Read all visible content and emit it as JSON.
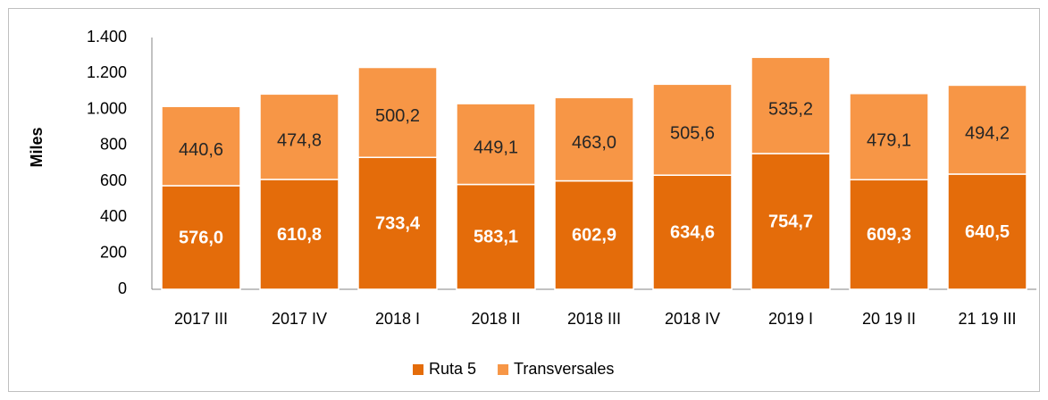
{
  "chart_data": {
    "type": "stacked_bar",
    "y_label": "Miles",
    "categories": [
      "2017 III",
      "2017 IV",
      "2018 I",
      "2018 II",
      "2018 III",
      "2018 IV",
      "2019 I",
      "20 19 II",
      "21 19 III"
    ],
    "series": [
      {
        "name": "Ruta 5",
        "color": "#e46c0a",
        "values": [
          576.0,
          610.8,
          733.4,
          583.1,
          602.9,
          634.6,
          754.7,
          609.3,
          640.5
        ],
        "value_labels": [
          "576,0",
          "610,8",
          "733,4",
          "583,1",
          "602,9",
          "634,6",
          "754,7",
          "609,3",
          "640,5"
        ]
      },
      {
        "name": "Transversales",
        "color": "#f79646",
        "values": [
          440.6,
          474.8,
          500.2,
          449.1,
          463.0,
          505.6,
          535.2,
          479.1,
          494.2
        ],
        "value_labels": [
          "440,6",
          "474,8",
          "500,2",
          "449,1",
          "463,0",
          "505,6",
          "535,2",
          "479,1",
          "494,2"
        ]
      }
    ],
    "ylim": [
      0,
      1400
    ],
    "yticks": [
      0,
      200,
      400,
      600,
      800,
      {
        "value": 1000,
        "label": "1.000"
      },
      {
        "value": 1200,
        "label": "1.200"
      },
      {
        "value": 1400,
        "label": "1.400"
      }
    ],
    "grid": false,
    "legend": "bottom"
  }
}
